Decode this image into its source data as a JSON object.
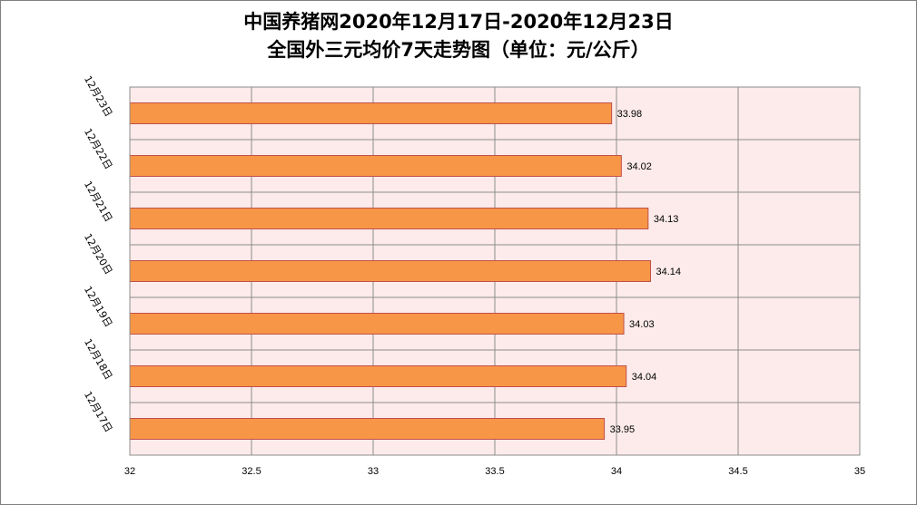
{
  "chart_data": {
    "type": "bar",
    "orientation": "horizontal",
    "title_lines": [
      "中国养猪网2020年12月17日-2020年12月23日",
      "全国外三元均价7天走势图（单位：元/公斤）"
    ],
    "categories": [
      "12月17日",
      "12月18日",
      "12月19日",
      "12月20日",
      "12月21日",
      "12月22日",
      "12月23日"
    ],
    "values": [
      33.95,
      34.04,
      34.03,
      34.14,
      34.13,
      34.02,
      33.98
    ],
    "value_labels": [
      "33.95",
      "34.04",
      "34.03",
      "34.14",
      "34.13",
      "34.02",
      "33.98"
    ],
    "xlim": [
      32,
      35
    ],
    "x_ticks": [
      32,
      32.5,
      33,
      33.5,
      34,
      34.5,
      35
    ],
    "x_tick_labels": [
      "32",
      "32.5",
      "33",
      "33.5",
      "34",
      "34.5",
      "35"
    ],
    "category_order": "bottom-to-top",
    "grid": true,
    "legend": "none",
    "colors": {
      "bar_fill": "#f79646",
      "bar_stroke": "#c0504d",
      "plot_background": "#fcebea",
      "grid": "#8c8c8c"
    }
  }
}
